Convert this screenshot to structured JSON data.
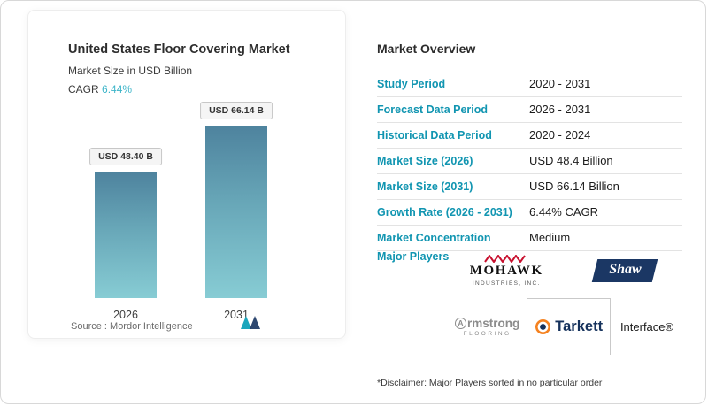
{
  "chart_data": {
    "type": "bar",
    "title": "United States Floor Covering Market",
    "subtitle": "Market Size in USD Billion",
    "cagr_label": "CAGR",
    "cagr_value": "6.44%",
    "categories": [
      "2026",
      "2031"
    ],
    "values": [
      48.4,
      66.14
    ],
    "value_labels": [
      "USD 48.40 B",
      "USD 66.14 B"
    ],
    "xlabel": "",
    "ylabel": "Market Size in USD Billion",
    "ylim": [
      0,
      78
    ],
    "grid": false,
    "reference_line": 48.4,
    "legend_position": "none",
    "source_label": "Source :",
    "source_name": "Mordor Intelligence"
  },
  "overview": {
    "title": "Market Overview",
    "rows": [
      {
        "label": "Study Period",
        "value": "2020 - 2031"
      },
      {
        "label": "Forecast Data Period",
        "value": "2026 - 2031"
      },
      {
        "label": "Historical Data Period",
        "value": "2020 - 2024"
      },
      {
        "label": "Market Size (2026)",
        "value": "USD 48.4 Billion"
      },
      {
        "label": "Market Size (2031)",
        "value": "USD 66.14 Billion"
      },
      {
        "label": "Growth Rate (2026 - 2031)",
        "value": "6.44% CAGR"
      },
      {
        "label": "Market Concentration",
        "value": "Medium"
      }
    ],
    "major_players_label": "Major Players",
    "players": {
      "mohawk": {
        "name": "MOHAWK",
        "sub": "INDUSTRIES, INC."
      },
      "shaw": {
        "name": "Shaw"
      },
      "armstrong": {
        "initial": "A",
        "rest": "rmstrong",
        "sub": "FLOORING"
      },
      "tarkett": {
        "name": "Tarkett"
      },
      "interface": {
        "name": "Interface®"
      }
    },
    "disclaimer": "*Disclaimer: Major Players sorted in no particular order"
  },
  "colors": {
    "accent_teal": "#1195b1",
    "cagr_teal": "#3db5c9",
    "bar_gradient_top": "#4e839e",
    "bar_gradient_bottom": "#87ccd4",
    "mohawk_red": "#c8102e",
    "shaw_navy": "#1b3764",
    "tarkett_navy": "#16325c",
    "tarkett_orange": "#f58220",
    "armstrong_gray": "#8c8c8c"
  }
}
